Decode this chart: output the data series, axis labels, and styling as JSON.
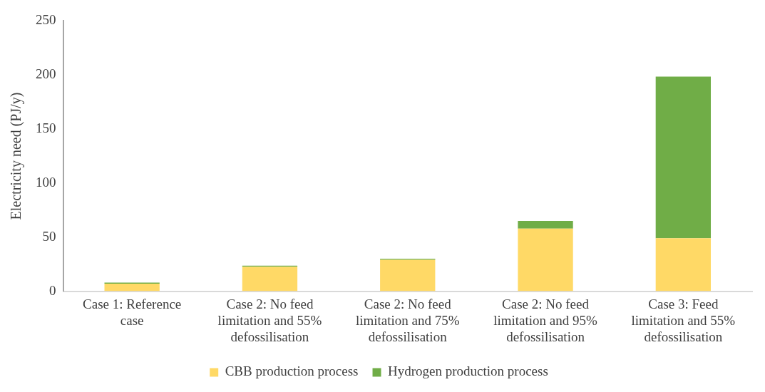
{
  "chart_data": {
    "type": "bar",
    "stacked": true,
    "ylabel": "Electricity need (PJ/y)",
    "categories": [
      "Case 1: Reference case",
      "Case 2: No feed limitation and 55% defossilisation",
      "Case 2: No feed limitation and 75% defossilisation",
      "Case 2: No feed limitation and 95% defossilisation",
      "Case 3: Feed limitation and 55% defossilisation"
    ],
    "series": [
      {
        "name": "CBB production process",
        "color": "#ffd966",
        "values": [
          7,
          22.7,
          29,
          58,
          49
        ]
      },
      {
        "name": "Hydrogen production process",
        "color": "#70ad47",
        "values": [
          1,
          1,
          1,
          7,
          149.5
        ]
      }
    ],
    "ylim": [
      0,
      250
    ],
    "yticks": [
      0,
      50,
      100,
      150,
      200,
      250
    ],
    "grid": false,
    "legend": "bottom"
  }
}
